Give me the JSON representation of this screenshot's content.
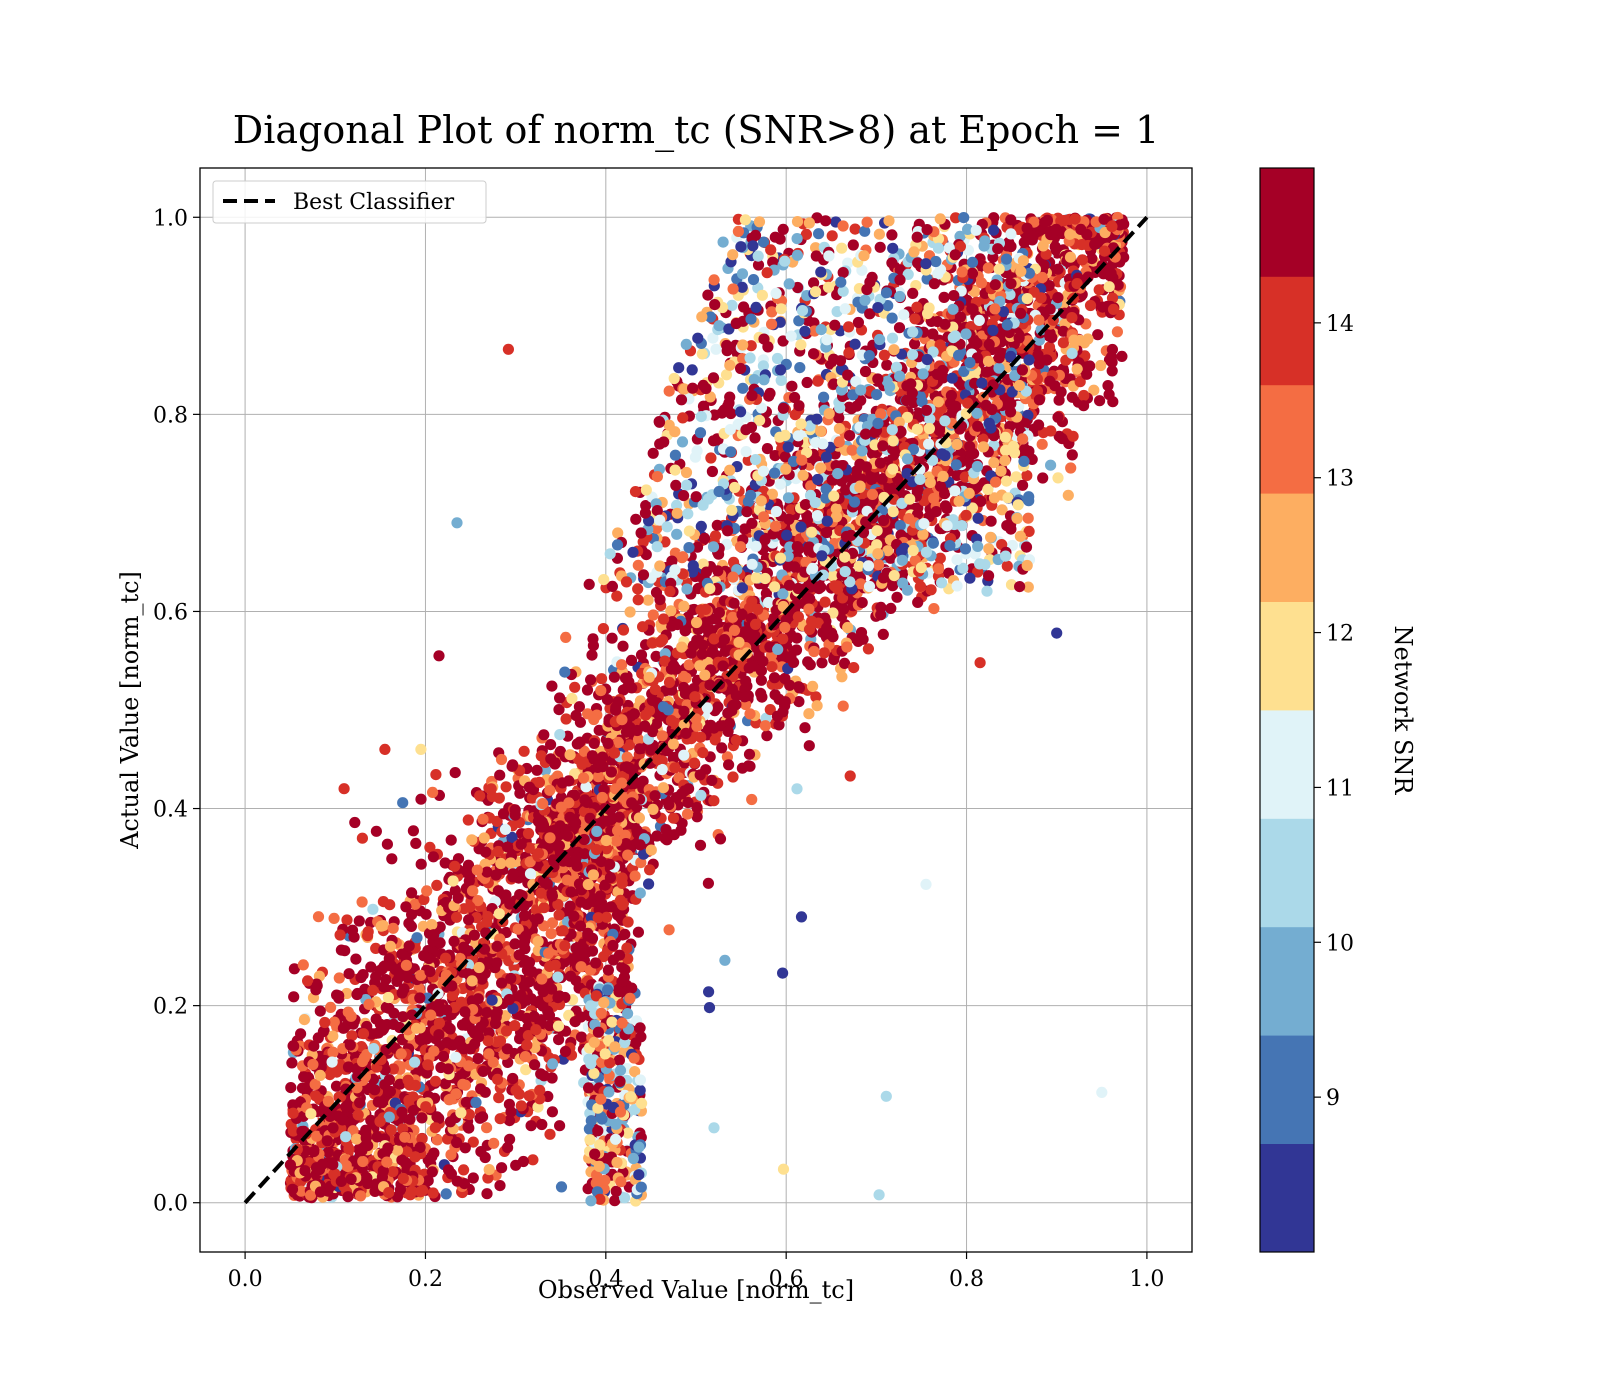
{
  "chart_data": {
    "type": "scatter",
    "title": "Diagonal Plot of norm_tc (SNR>8) at Epoch = 1",
    "xlabel": "Observed Value [norm_tc]",
    "ylabel": "Actual Value [norm_tc]",
    "xlim": [
      -0.05,
      1.05
    ],
    "ylim": [
      -0.05,
      1.05
    ],
    "xticks": [
      "0.0",
      "0.2",
      "0.4",
      "0.6",
      "0.8",
      "1.0"
    ],
    "yticks": [
      "0.0",
      "0.2",
      "0.4",
      "0.6",
      "0.8",
      "1.0"
    ],
    "grid": true,
    "legend": {
      "position": "top-left",
      "entries": [
        {
          "label": "Best Classifier",
          "style": "black dashed line"
        }
      ]
    },
    "reference_line": {
      "name": "Best Classifier",
      "x": [
        0.0,
        1.0
      ],
      "y": [
        0.0,
        1.0
      ]
    },
    "colorbar": {
      "label": "Network SNR",
      "range": [
        8.0,
        15.0
      ],
      "tick_values": [
        9,
        10,
        11,
        12,
        13,
        14
      ],
      "tick_labels": [
        "9",
        "10",
        "11",
        "12",
        "13",
        "14"
      ],
      "colors": [
        "#313695",
        "#4575b4",
        "#74add1",
        "#abd9e9",
        "#e0f3f8",
        "#fee090",
        "#fdae61",
        "#f46d43",
        "#d73027",
        "#a50026"
      ]
    },
    "point_clusters": [
      {
        "region": "lower-left band",
        "x_range": [
          0.05,
          0.43
        ],
        "y_range": [
          0.0,
          0.45
        ],
        "dominant_snr": "high (13-15)"
      },
      {
        "region": "diagonal band",
        "x_range": [
          0.35,
          0.97
        ],
        "y_range": [
          0.3,
          1.0
        ],
        "dominant_snr": "high (13-15)"
      },
      {
        "region": "upper block",
        "x_range": [
          0.37,
          0.86
        ],
        "y_range": [
          0.6,
          1.0
        ],
        "dominant_snr": "mixed (8-15)"
      }
    ],
    "outliers": [
      {
        "x": 0.235,
        "y": 0.69,
        "snr": 9.8
      },
      {
        "x": 0.155,
        "y": 0.46,
        "snr": 13.8
      },
      {
        "x": 0.195,
        "y": 0.46,
        "snr": 12.0
      },
      {
        "x": 0.215,
        "y": 0.555,
        "snr": 14.6
      },
      {
        "x": 0.9,
        "y": 0.578,
        "snr": 8.2
      },
      {
        "x": 0.815,
        "y": 0.548,
        "snr": 13.8
      },
      {
        "x": 0.755,
        "y": 0.323,
        "snr": 11.3
      },
      {
        "x": 0.612,
        "y": 0.42,
        "snr": 10.4
      },
      {
        "x": 0.617,
        "y": 0.29,
        "snr": 8.5
      },
      {
        "x": 0.596,
        "y": 0.233,
        "snr": 8.6
      },
      {
        "x": 0.532,
        "y": 0.246,
        "snr": 9.6
      },
      {
        "x": 0.514,
        "y": 0.214,
        "snr": 8.4
      },
      {
        "x": 0.515,
        "y": 0.198,
        "snr": 8.3
      },
      {
        "x": 0.711,
        "y": 0.108,
        "snr": 10.4
      },
      {
        "x": 0.703,
        "y": 0.008,
        "snr": 10.6
      },
      {
        "x": 0.95,
        "y": 0.112,
        "snr": 11.2
      },
      {
        "x": 0.597,
        "y": 0.034,
        "snr": 12.0
      },
      {
        "x": 0.52,
        "y": 0.076,
        "snr": 10.3
      },
      {
        "x": 0.292,
        "y": 0.866,
        "snr": 14.0
      }
    ]
  }
}
